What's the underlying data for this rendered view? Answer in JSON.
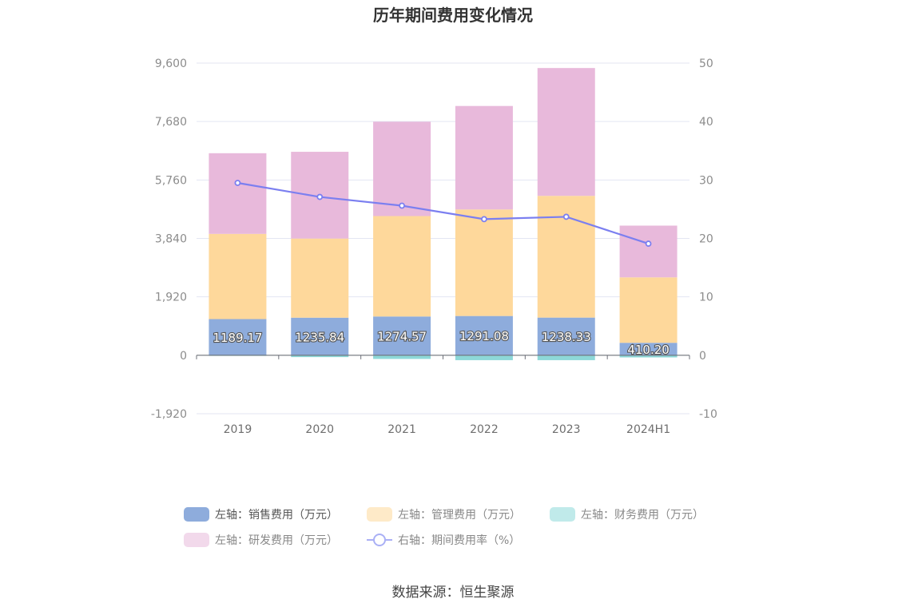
{
  "chart_data": {
    "type": "bar",
    "title": "历年期间费用变化情况",
    "categories": [
      "2019",
      "2020",
      "2021",
      "2022",
      "2023",
      "2024H1"
    ],
    "left_axis": {
      "min": -1920,
      "max": 9600,
      "ticks": [
        -1920,
        0,
        1920,
        3840,
        5760,
        7680,
        9600
      ],
      "tick_labels": [
        "-1,920",
        "0",
        "1,920",
        "3,840",
        "5,760",
        "7,680",
        "9,600"
      ]
    },
    "right_axis": {
      "min": -10,
      "max": 50,
      "ticks": [
        -10,
        0,
        10,
        20,
        30,
        40,
        50
      ],
      "tick_labels": [
        "-10",
        "0",
        "10",
        "20",
        "30",
        "40",
        "50"
      ]
    },
    "series": [
      {
        "name": "左轴：销售费用（万元）",
        "type": "bar",
        "axis": "left",
        "color": "#8eacdc",
        "values": [
          1189.17,
          1235.84,
          1274.57,
          1291.08,
          1238.33,
          410.2
        ],
        "labels": [
          "1189.17",
          "1235.84",
          "1274.57",
          "1291.08",
          "1238.33",
          "410.20"
        ]
      },
      {
        "name": "左轴：管理费用（万元）",
        "type": "bar",
        "axis": "left",
        "color": "#fed89b",
        "values": [
          2800,
          2600,
          3300,
          3500,
          4000,
          2150
        ]
      },
      {
        "name": "左轴：财务费用（万元）",
        "type": "bar",
        "axis": "left",
        "color": "#8dd8d8",
        "values": [
          -20,
          -60,
          -120,
          -160,
          -160,
          -70
        ]
      },
      {
        "name": "左轴：研发费用（万元）",
        "type": "bar",
        "axis": "left",
        "color": "#e8b9db",
        "values": [
          2650,
          2850,
          3100,
          3400,
          4200,
          1700
        ]
      },
      {
        "name": "右轴：期间费用率（%）",
        "type": "line",
        "axis": "right",
        "color": "#7b7ff0",
        "values": [
          29.5,
          27.1,
          25.6,
          23.3,
          23.7,
          19.1
        ]
      }
    ],
    "legend_position": "bottom-center",
    "grid": true
  },
  "source_text": "数据来源：恒生聚源"
}
